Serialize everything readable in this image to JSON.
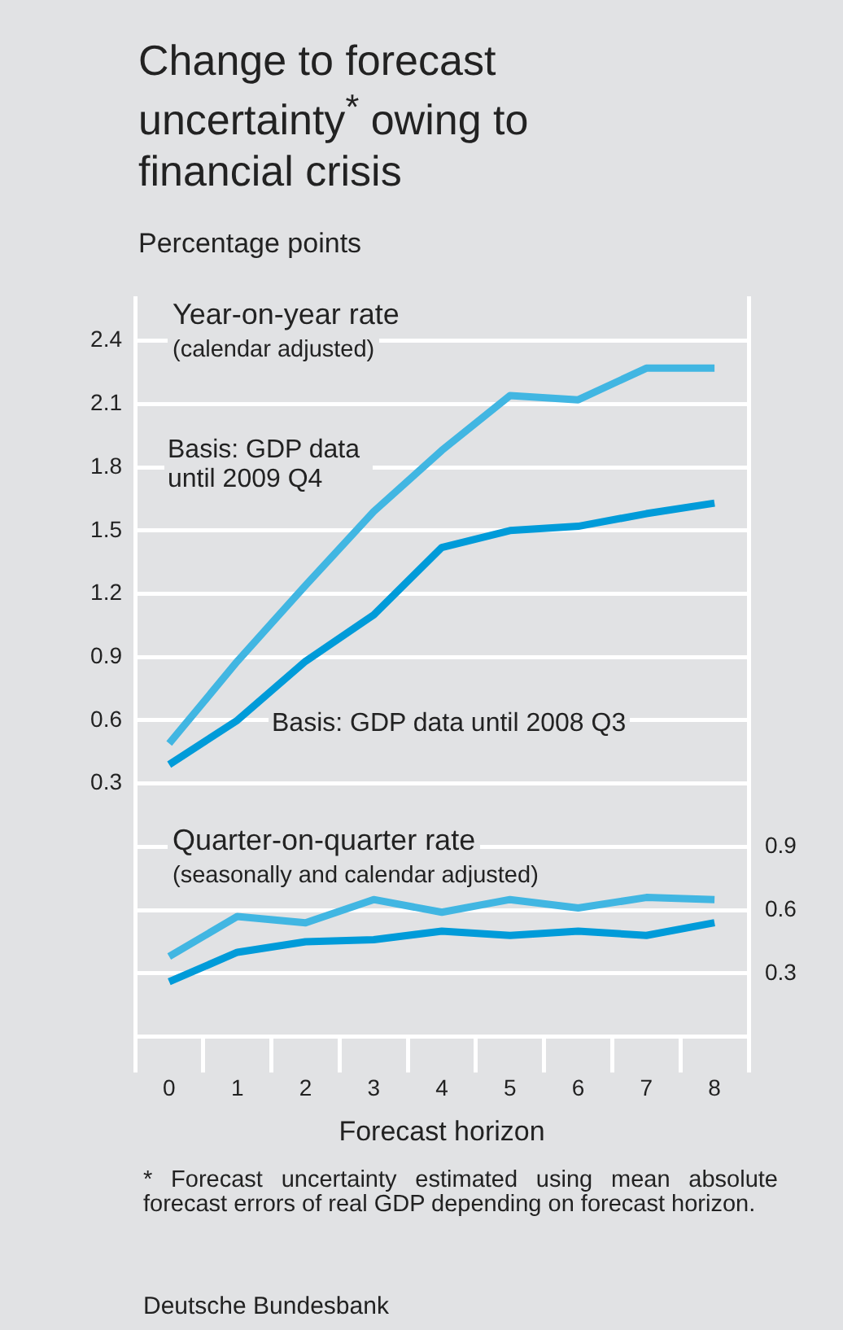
{
  "chart_data": {
    "type": "line",
    "title": "Change to forecast uncertainty$^{*}$ owing to financial crisis",
    "ylabel": "Percentage points",
    "xlabel": "Forecast horizon",
    "categories": [
      "0",
      "1",
      "2",
      "3",
      "4",
      "5",
      "6",
      "7",
      "8"
    ],
    "series": [
      {
        "name": "Basis: GDP data until 2009 Q4",
        "color": "#41b6e2",
        "values": [
          0.49,
          0.88,
          1.24,
          1.59,
          1.88,
          2.14,
          2.12,
          2.27,
          2.27
        ]
      },
      {
        "name": "Basis: GDP data until 2008 Q3",
        "color": "#009bd9",
        "values": [
          0.39,
          0.6,
          0.88,
          1.1,
          1.42,
          1.5,
          1.52,
          1.58,
          1.63
        ]
      },
      {
        "color": "#41b6e2",
        "axis": "y2",
        "values": [
          0.38,
          0.57,
          0.54,
          0.65,
          0.59,
          0.65,
          0.61,
          0.66,
          0.65
        ]
      },
      {
        "color": "#009bd9",
        "axis": "y2",
        "values": [
          0.26,
          0.4,
          0.45,
          0.46,
          0.5,
          0.48,
          0.5,
          0.48,
          0.54
        ]
      }
    ],
    "ylim": [
      -0.9,
      2.6
    ],
    "yticks": [
      0.3,
      0.6,
      0.9,
      1.2,
      1.5,
      1.8,
      2.1,
      2.4
    ],
    "y2lim": [
      0,
      3.5
    ],
    "y2ticks": [
      0.3,
      0.6,
      0.9
    ],
    "annotations": [
      "Year-on-year rate",
      "(calendar adjusted)",
      "Quarter-on-quarter rate",
      "(seasonally and calendar adjusted)",
      "* Forecast uncertainty estimated using mean absolute forecast errors of real GDP depending on forecast horizon.",
      "Deutsche Bundesbank"
    ],
    "grid": "y",
    "legend": false,
    "marker": "none",
    "line_style": "solid"
  }
}
